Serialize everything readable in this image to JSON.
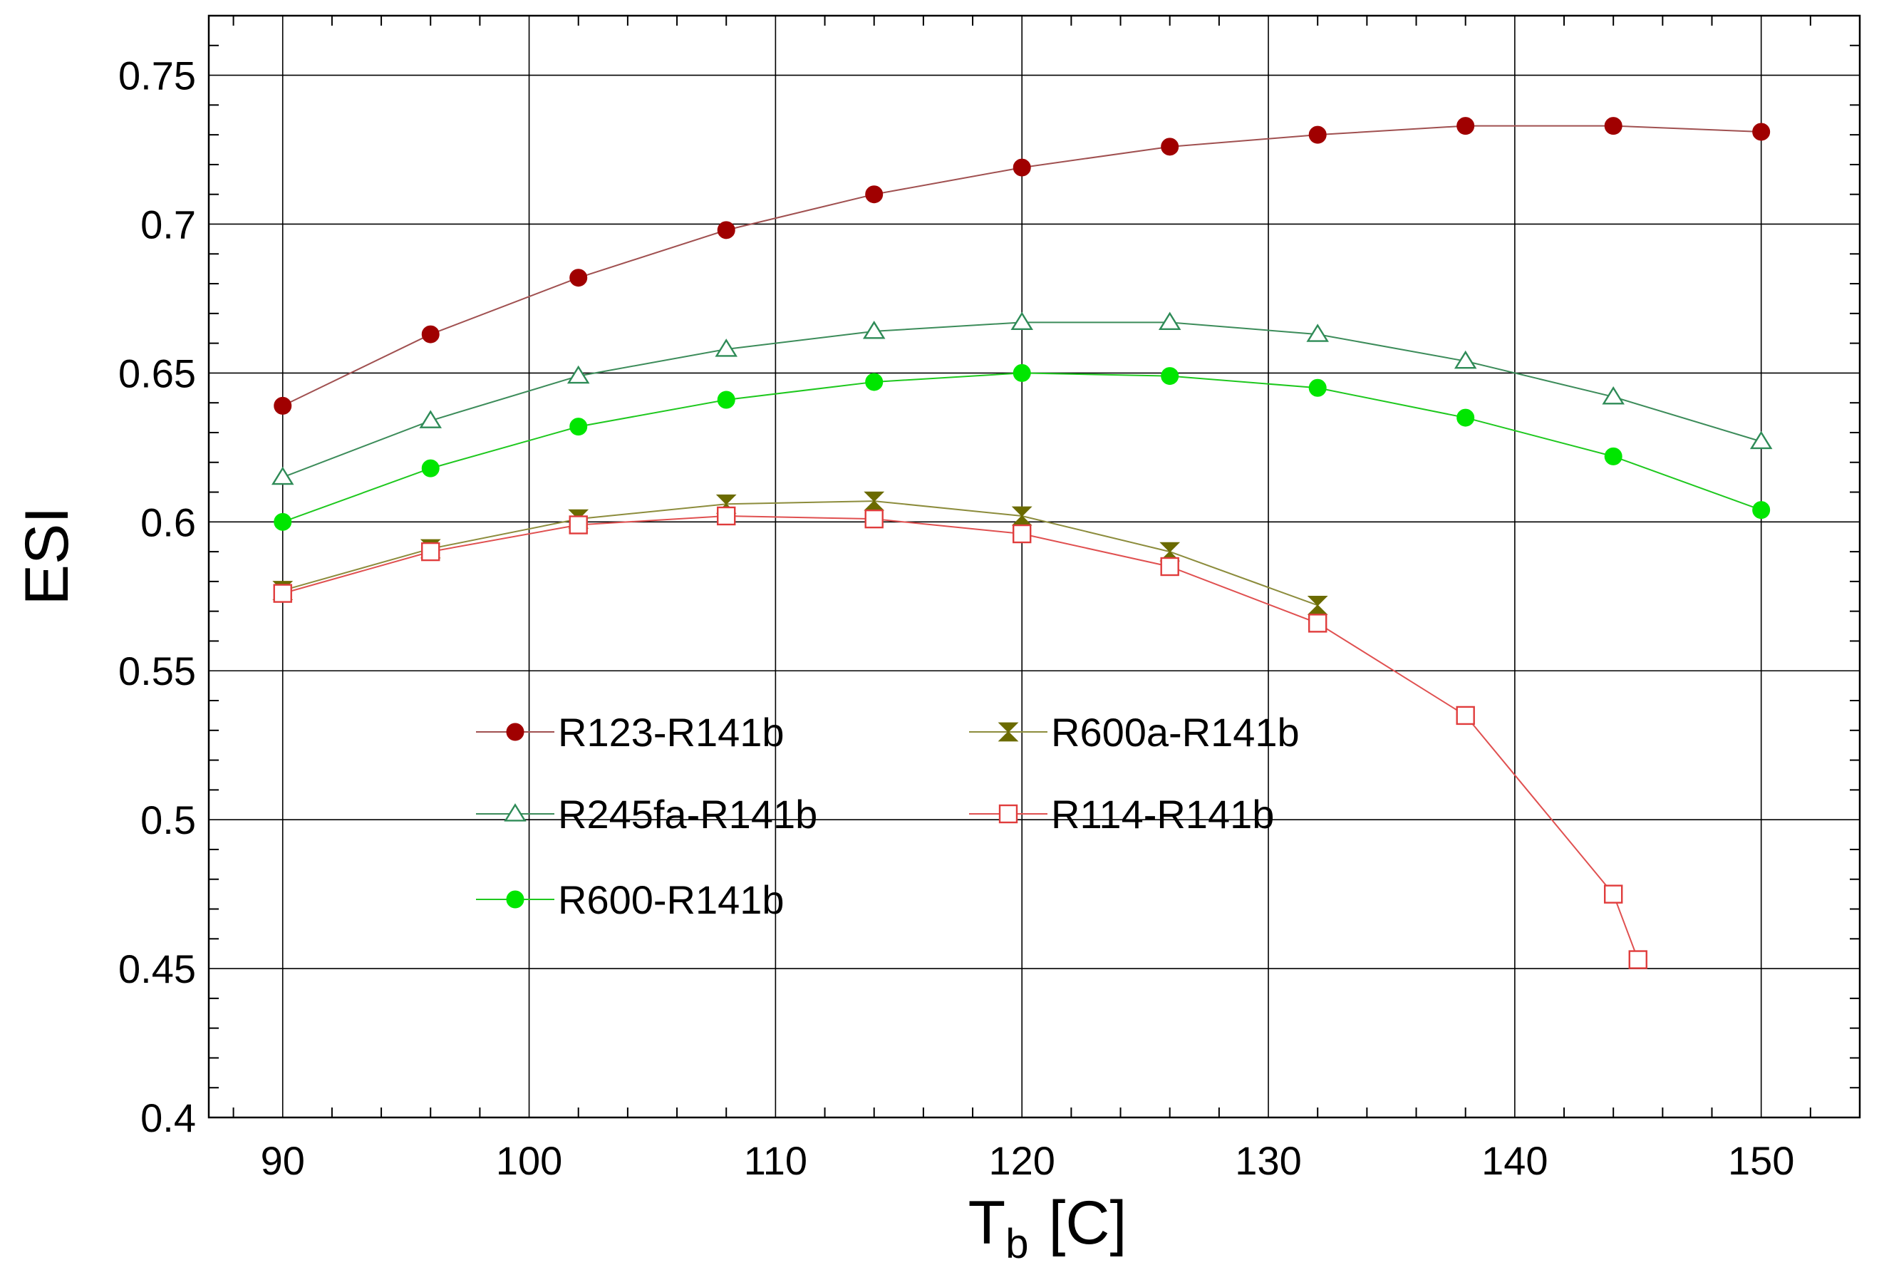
{
  "chart_data": {
    "type": "line",
    "title": "",
    "xlabel": "T",
    "xlabel_sub": "b",
    "xlabel_unit": "[C]",
    "ylabel": "ESI",
    "xlim": [
      87,
      154
    ],
    "ylim": [
      0.4,
      0.77
    ],
    "xticks": [
      90,
      100,
      110,
      120,
      130,
      140,
      150
    ],
    "xtick_labels": [
      "90",
      "100",
      "110",
      "120",
      "130",
      "140",
      "150"
    ],
    "yticks": [
      0.4,
      0.45,
      0.5,
      0.55,
      0.6,
      0.65,
      0.7,
      0.75
    ],
    "ytick_labels": [
      "0.4",
      "0.45",
      "0.5",
      "0.55",
      "0.6",
      "0.65",
      "0.7",
      "0.75"
    ],
    "grid": true,
    "legend": "lower-left inside plot, three rows by two columns",
    "series": [
      {
        "name": "R123-R141b",
        "marker": "filled-circle",
        "line_color": "#a05050",
        "marker_color": "#a00000",
        "x": [
          90,
          96,
          102,
          108,
          114,
          120,
          126,
          132,
          138,
          144,
          150
        ],
        "y": [
          0.639,
          0.663,
          0.682,
          0.698,
          0.71,
          0.719,
          0.726,
          0.73,
          0.733,
          0.733,
          0.731
        ]
      },
      {
        "name": "R245fa-R141b",
        "marker": "open-triangle",
        "line_color": "#3c8c5a",
        "marker_color": "#2e8b57",
        "x": [
          90,
          96,
          102,
          108,
          114,
          120,
          126,
          132,
          138,
          144,
          150
        ],
        "y": [
          0.615,
          0.634,
          0.649,
          0.658,
          0.664,
          0.667,
          0.667,
          0.663,
          0.654,
          0.642,
          0.627
        ]
      },
      {
        "name": "R600-R141b",
        "marker": "filled-circle",
        "line_color": "#1ec81e",
        "marker_color": "#00e600",
        "x": [
          90,
          96,
          102,
          108,
          114,
          120,
          126,
          132,
          138,
          144,
          150
        ],
        "y": [
          0.6,
          0.618,
          0.632,
          0.641,
          0.647,
          0.65,
          0.649,
          0.645,
          0.635,
          0.622,
          0.604
        ]
      },
      {
        "name": "R600a-R141b",
        "marker": "hourglass",
        "line_color": "#8c8c3c",
        "marker_color": "#6b6b00",
        "x": [
          90,
          96,
          102,
          108,
          114,
          120,
          126,
          132
        ],
        "y": [
          0.577,
          0.591,
          0.601,
          0.606,
          0.607,
          0.602,
          0.59,
          0.572
        ]
      },
      {
        "name": "R114-R141b",
        "marker": "open-square",
        "line_color": "#e05050",
        "marker_color": "#e03c3c",
        "x": [
          90,
          96,
          102,
          108,
          114,
          120,
          126,
          132,
          138,
          144,
          145
        ],
        "y": [
          0.576,
          0.59,
          0.599,
          0.602,
          0.601,
          0.596,
          0.585,
          0.566,
          0.535,
          0.475,
          0.453
        ]
      }
    ]
  }
}
